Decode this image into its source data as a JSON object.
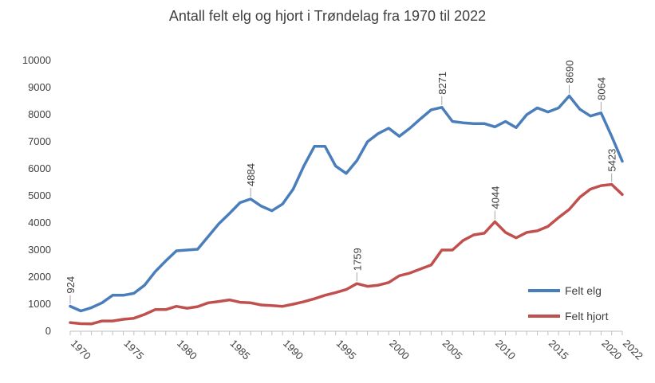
{
  "chart_data": {
    "type": "line",
    "title": "Antall felt elg og hjort i Trøndelag fra 1970 til 2022",
    "xlabel": "",
    "ylabel": "",
    "ylim": [
      0,
      10000
    ],
    "yticks": [
      0,
      1000,
      2000,
      3000,
      4000,
      5000,
      6000,
      7000,
      8000,
      9000,
      10000
    ],
    "xticks": [
      1970,
      1975,
      1980,
      1985,
      1990,
      1995,
      2000,
      2005,
      2010,
      2015,
      2020,
      2022
    ],
    "grid": false,
    "legend_position": "bottom-right",
    "x": [
      1970,
      1971,
      1972,
      1973,
      1974,
      1975,
      1976,
      1977,
      1978,
      1979,
      1980,
      1981,
      1982,
      1983,
      1984,
      1985,
      1986,
      1987,
      1988,
      1989,
      1990,
      1991,
      1992,
      1993,
      1994,
      1995,
      1996,
      1997,
      1998,
      1999,
      2000,
      2001,
      2002,
      2003,
      2004,
      2005,
      2006,
      2007,
      2008,
      2009,
      2010,
      2011,
      2012,
      2013,
      2014,
      2015,
      2016,
      2017,
      2018,
      2019,
      2020,
      2021,
      2022
    ],
    "series": [
      {
        "name": "Felt elg",
        "color": "#4a7ebb",
        "values": [
          924,
          750,
          870,
          1050,
          1330,
          1330,
          1400,
          1700,
          2200,
          2600,
          2970,
          3000,
          3030,
          3500,
          3970,
          4350,
          4750,
          4884,
          4620,
          4450,
          4700,
          5250,
          6100,
          6830,
          6830,
          6100,
          5830,
          6300,
          7000,
          7300,
          7500,
          7200,
          7500,
          7850,
          8180,
          8271,
          7750,
          7700,
          7670,
          7670,
          7550,
          7750,
          7520,
          8000,
          8250,
          8100,
          8250,
          8690,
          8200,
          7950,
          8064,
          7200,
          6280
        ]
      },
      {
        "name": "Felt hjort",
        "color": "#c0504d",
        "values": [
          320,
          280,
          270,
          380,
          380,
          440,
          480,
          620,
          800,
          800,
          920,
          850,
          910,
          1050,
          1100,
          1160,
          1070,
          1050,
          970,
          950,
          920,
          1000,
          1090,
          1200,
          1330,
          1430,
          1540,
          1759,
          1660,
          1700,
          1800,
          2050,
          2150,
          2300,
          2450,
          3000,
          3000,
          3350,
          3560,
          3620,
          4044,
          3650,
          3450,
          3650,
          3710,
          3870,
          4200,
          4500,
          4950,
          5250,
          5380,
          5423,
          5050
        ]
      }
    ],
    "annotations": [
      {
        "series": 0,
        "x": 1970,
        "label": "924"
      },
      {
        "series": 0,
        "x": 1987,
        "label": "4884"
      },
      {
        "series": 0,
        "x": 2005,
        "label": "8271"
      },
      {
        "series": 0,
        "x": 2017,
        "label": "8690"
      },
      {
        "series": 0,
        "x": 2020,
        "label": "8064"
      },
      {
        "series": 1,
        "x": 1997,
        "label": "1759"
      },
      {
        "series": 1,
        "x": 2010,
        "label": "4044"
      },
      {
        "series": 1,
        "x": 2021,
        "label": "5423"
      }
    ]
  }
}
